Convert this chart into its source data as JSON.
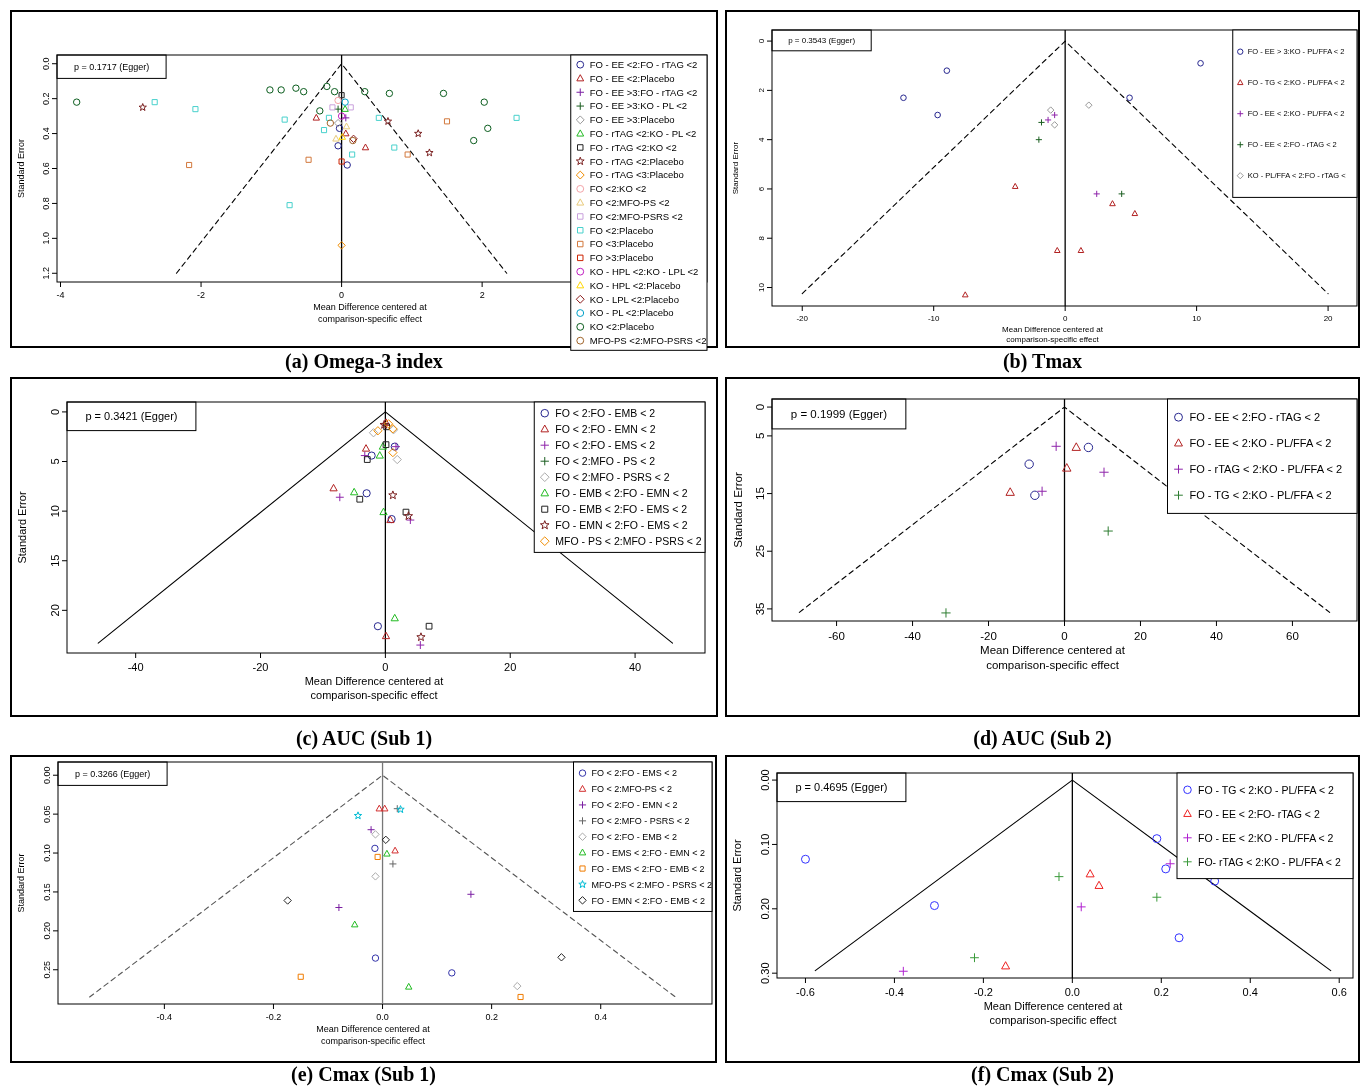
{
  "chart_data": [
    {
      "type": "scatter",
      "title": "(a) Omega-3 index",
      "xlabel": "Mean Difference centered at comparison-specific effect",
      "ylabel": "Standard Error",
      "annotations": [
        "p = 0.1717 (Egger)"
      ],
      "xlim": [
        -4.05,
        5.2
      ],
      "ylim": [
        1.25,
        -0.05
      ],
      "xticks": [
        -4,
        -2,
        0,
        2
      ],
      "yticks": [
        {
          "value": 0,
          "label": "0.0"
        },
        {
          "value": 0.2,
          "label": "0.2"
        },
        {
          "value": 0.4,
          "label": "0.4"
        },
        {
          "value": 0.6,
          "label": "0.6"
        },
        {
          "value": 0.8,
          "label": "0.8"
        },
        {
          "value": 1,
          "label": "1.0"
        },
        {
          "value": 1.2,
          "label": "1.2"
        }
      ],
      "legend": "right",
      "ref_lines": [
        {
          "axis": "x",
          "value": 0,
          "color": "#000000"
        }
      ],
      "series": [
        {
          "type": "line",
          "color": "#000000",
          "line_style": "dashed",
          "x": [
            -2.35,
            0,
            2.35
          ],
          "values": [
            1.2,
            0,
            1.2
          ]
        },
        {
          "name": "FO - EE <2:FO - rTAG <2",
          "color": "#27278f",
          "marker": "circle",
          "x": [
            -0.03,
            -0.05,
            0.08
          ],
          "values": [
            0.37,
            0.47,
            0.58
          ]
        },
        {
          "name": "FO - EE <2:Placebo",
          "color": "#b22222",
          "marker": "triangle",
          "x": [
            -0.36,
            0.06,
            0.34
          ],
          "values": [
            0.31,
            0.4,
            0.48
          ]
        },
        {
          "name": "FO - EE >3:FO - rTAG <2",
          "color": "#7b1fa2",
          "marker": "cross",
          "x": [
            0.06
          ],
          "values": [
            0.31
          ]
        },
        {
          "name": "FO - EE >3:KO - PL <2",
          "color": "#1b5e20",
          "marker": "cross",
          "x": [
            -0.05
          ],
          "values": [
            0.26
          ]
        },
        {
          "name": "FO - EE >3:Placebo",
          "color": "#999999",
          "marker": "diamond",
          "x": [
            -0.05
          ],
          "values": [
            0.34
          ]
        },
        {
          "name": "FO - rTAG <2:KO - PL <2",
          "color": "#22bb22",
          "marker": "triangle",
          "x": [
            0.05
          ],
          "values": [
            0.26
          ]
        },
        {
          "name": "FO - rTAG <2:KO <2",
          "color": "#222222",
          "marker": "square",
          "x": [
            0
          ],
          "values": [
            0.18
          ]
        },
        {
          "name": "FO - rTAG <2:Placebo",
          "color": "#7a1f1f",
          "marker": "star",
          "x": [
            -2.83,
            0.66,
            1.09,
            1.25
          ],
          "values": [
            0.25,
            0.33,
            0.4,
            0.51
          ]
        },
        {
          "name": "FO - rTAG <3:Placebo",
          "color": "#f08c00",
          "marker": "diamond",
          "x": [
            0
          ],
          "values": [
            1.04
          ]
        },
        {
          "name": "FO <2:KO <2",
          "color": "#f4a3a8",
          "marker": "circle",
          "x": [
            -0.05
          ],
          "values": [
            0.21
          ]
        },
        {
          "name": "FO <2:MFO-PS <2",
          "color": "#e8c97a",
          "marker": "triangle",
          "x": [
            -0.08,
            0.07
          ],
          "values": [
            0.43,
            0.36
          ]
        },
        {
          "name": "FO <2:MFO-PSRS <2",
          "color": "#c9a0dc",
          "marker": "square",
          "x": [
            -0.13,
            0.13
          ],
          "values": [
            0.25,
            0.25
          ]
        },
        {
          "name": "FO <2:Placebo",
          "color": "#48d1cc",
          "marker": "square",
          "x": [
            -2.66,
            -2.08,
            -0.81,
            -0.25,
            -0.18,
            0.15,
            0.53,
            0.75,
            2.49,
            -0.74
          ],
          "values": [
            0.22,
            0.26,
            0.32,
            0.38,
            0.31,
            0.52,
            0.31,
            0.48,
            0.31,
            0.81
          ]
        },
        {
          "name": "FO <3:Placebo",
          "color": "#d2783c",
          "marker": "square",
          "x": [
            -2.17,
            -0.47,
            0.94,
            1.5
          ],
          "values": [
            0.58,
            0.55,
            0.52,
            0.33
          ]
        },
        {
          "name": "FO >3:Placebo",
          "color": "#cc2200",
          "marker": "square",
          "x": [
            0
          ],
          "values": [
            0.56
          ]
        },
        {
          "name": "KO - HPL <2:KO - LPL <2",
          "color": "#c020c0",
          "marker": "circle",
          "x": [
            0
          ],
          "values": [
            0.3
          ]
        },
        {
          "name": "KO - HPL <2:Placebo",
          "color": "#ffd700",
          "marker": "triangle",
          "x": [
            0.01
          ],
          "values": [
            0.42
          ]
        },
        {
          "name": "KO - LPL <2:Placebo",
          "color": "#8b1a1a",
          "marker": "diamond",
          "x": [
            0.17
          ],
          "values": [
            0.43
          ]
        },
        {
          "name": "KO - PL <2:Placebo",
          "color": "#00a0c8",
          "marker": "circle",
          "x": [
            0.05
          ],
          "values": [
            0.22
          ]
        },
        {
          "name": "KO <2:Placebo",
          "color": "#0b5d1e",
          "marker": "circle",
          "x": [
            -3.77,
            -1.02,
            -0.86,
            -0.65,
            -0.54,
            -0.21,
            -0.1,
            -0.31,
            0.33,
            0.68,
            1.45,
            2.03,
            2.08,
            1.88
          ],
          "values": [
            0.22,
            0.15,
            0.15,
            0.14,
            0.16,
            0.13,
            0.16,
            0.27,
            0.16,
            0.17,
            0.17,
            0.22,
            0.37,
            0.44
          ]
        },
        {
          "name": "MFO-PS <2:MFO-PSRS <2",
          "color": "#a0642a",
          "marker": "circle",
          "x": [
            -0.16,
            0.16
          ],
          "values": [
            0.34,
            0.44
          ]
        }
      ]
    },
    {
      "type": "scatter",
      "title": "(b) Tmax",
      "xlabel": "Mean Difference centered at comparison-specific effect",
      "ylabel": "Standard Error",
      "annotations": [
        "p = 0.3543 (Egger)"
      ],
      "xlim": [
        -22.3,
        22.2
      ],
      "ylim": [
        10.75,
        -0.45
      ],
      "xticks": [
        -20,
        -10,
        0,
        10,
        20
      ],
      "yticks": [
        0,
        2,
        4,
        6,
        8,
        10
      ],
      "legend": "top right",
      "ref_lines": [
        {
          "axis": "x",
          "value": 0,
          "color": "#000000"
        }
      ],
      "series": [
        {
          "type": "line",
          "color": "#000000",
          "line_style": "dashed",
          "x": [
            -20,
            0,
            20
          ],
          "values": [
            10.25,
            0,
            10.25
          ]
        },
        {
          "name": "FO - EE > 3:KO - PL/FFA < 2",
          "color": "#27278f",
          "marker": "circle",
          "x": [
            -9,
            -12.3,
            -9.7,
            4.9,
            10.3
          ],
          "values": [
            1.2,
            2.3,
            3,
            2.3,
            0.9
          ]
        },
        {
          "name": "FO - TG < 2:KO - PL/FFA < 2",
          "color": "#b22222",
          "marker": "triangle",
          "x": [
            -3.8,
            3.6,
            5.3,
            -0.6,
            1.2,
            -7.6
          ],
          "values": [
            5.9,
            6.6,
            7,
            8.5,
            8.5,
            10.3
          ]
        },
        {
          "name": "FO - EE < 2:KO - PL/FFA < 2",
          "color": "#8e24aa",
          "marker": "cross",
          "x": [
            -0.8,
            -1.3,
            2.4
          ],
          "values": [
            3,
            3.2,
            6.2
          ]
        },
        {
          "name": "FO - EE < 2:FO - rTAG < 2",
          "color": "#1b5e20",
          "marker": "cross",
          "x": [
            -1.8,
            -2,
            4.3
          ],
          "values": [
            3.3,
            4,
            6.2
          ]
        },
        {
          "name": "KO - PL/FFA < 2:FO - rTAG <",
          "color": "#999999",
          "marker": "diamond",
          "x": [
            -1.1,
            -0.8,
            1.8
          ],
          "values": [
            2.8,
            3.4,
            2.6
          ]
        }
      ]
    },
    {
      "type": "scatter",
      "title": "(c) AUC (Sub 1)",
      "xlabel": "Mean Difference centered at comparison-specific effect",
      "ylabel": "Standard Error",
      "annotations": [
        "p = 0.3421 (Egger)"
      ],
      "xlim": [
        -51,
        51.2
      ],
      "ylim": [
        24.3,
        -1
      ],
      "xticks": [
        -40,
        -20,
        0,
        20,
        40
      ],
      "yticks": [
        0,
        5,
        10,
        15,
        20
      ],
      "legend": "top right",
      "ref_lines": [
        {
          "axis": "x",
          "value": 0,
          "color": "#000000"
        }
      ],
      "series": [
        {
          "type": "line",
          "color": "#000000",
          "line_style": "solid",
          "x": [
            -46,
            0,
            46
          ],
          "values": [
            23.3,
            0,
            23.3
          ]
        },
        {
          "name": "FO < 2:FO - EMB < 2",
          "color": "#27278f",
          "marker": "circle",
          "x": [
            -2.2,
            -3,
            1,
            -1.2,
            1.5
          ],
          "values": [
            4.4,
            8.2,
            10.8,
            21.6,
            3.5
          ]
        },
        {
          "name": "FO < 2:FO - EMN < 2",
          "color": "#b22222",
          "marker": "triangle",
          "x": [
            -3.1,
            -8.3,
            0.8,
            0.1,
            0.1
          ],
          "values": [
            3.7,
            7.7,
            10.9,
            22.6,
            1.1
          ]
        },
        {
          "name": "FO < 2:FO - EMS < 2",
          "color": "#8e24aa",
          "marker": "cross",
          "x": [
            -3.3,
            -7.3,
            4,
            5.6,
            1.7
          ],
          "values": [
            4.4,
            8.6,
            10.9,
            23.5,
            3.5
          ]
        },
        {
          "name": "FO < 2:MFO - PS < 2",
          "color": "#1b5e20",
          "marker": "cross"
        },
        {
          "name": "FO < 2:MFO - PSRS < 2",
          "color": "#aaaaaa",
          "marker": "diamond",
          "x": [
            -1.9,
            1.9,
            1.3
          ],
          "values": [
            2.1,
            4.8,
            1.8
          ]
        },
        {
          "name": "FO - EMB < 2:FO - EMN < 2",
          "color": "#22bb22",
          "marker": "triangle",
          "x": [
            -5,
            -0.3,
            1.5,
            -0.9,
            -0.4
          ],
          "values": [
            8.1,
            10.1,
            20.8,
            4.4,
            3.5
          ]
        },
        {
          "name": "FO - EMB < 2:FO - EMS < 2",
          "color": "#222222",
          "marker": "square",
          "x": [
            -4.1,
            -2.9,
            3.3,
            7,
            0.1,
            0.2
          ],
          "values": [
            8.8,
            4.8,
            10.1,
            21.6,
            3.3,
            1.5
          ]
        },
        {
          "name": "FO - EMN < 2:FO - EMS < 2",
          "color": "#7a1f1f",
          "marker": "star",
          "x": [
            1.2,
            5.7,
            3.7,
            -0.2
          ],
          "values": [
            8.4,
            22.7,
            10.5,
            1.3
          ]
        },
        {
          "name": "MFO - PS < 2:MFO - PSRS < 2",
          "color": "#f08c00",
          "marker": "diamond",
          "x": [
            -1.2,
            1.2,
            0.5,
            1.2
          ],
          "values": [
            1.9,
            4.1,
            1.2,
            1.7
          ]
        }
      ]
    },
    {
      "type": "scatter",
      "title": "(d) AUC (Sub 2)",
      "xlabel": "Mean Difference centered at comparison-specific effect",
      "ylabel": "Standard Error",
      "annotations": [
        "p = 0.1999 (Egger)"
      ],
      "xlim": [
        -77,
        77
      ],
      "ylim": [
        37.1,
        -1.4
      ],
      "xticks": [
        -60,
        -40,
        -20,
        0,
        20,
        40,
        60
      ],
      "yticks": [
        0,
        5,
        15,
        25,
        35
      ],
      "legend": "top right",
      "ref_lines": [
        {
          "axis": "x",
          "value": 0,
          "color": "#000000"
        }
      ],
      "series": [
        {
          "type": "line",
          "color": "#000000",
          "line_style": "dashed",
          "x": [
            -69.8,
            0,
            69.8
          ],
          "values": [
            35.6,
            0,
            35.6
          ]
        },
        {
          "name": "FO - EE < 2:FO - rTAG < 2",
          "color": "#27278f",
          "marker": "circle",
          "x": [
            -9.3,
            -7.8,
            6.3
          ],
          "values": [
            9.9,
            15.3,
            7
          ]
        },
        {
          "name": "FO - EE < 2:KO - PL/FFA < 2",
          "color": "#b22222",
          "marker": "triangle",
          "x": [
            -14.3,
            0.6,
            3.1
          ],
          "values": [
            14.8,
            10.6,
            7
          ]
        },
        {
          "name": "FO - rTAG < 2:KO - PL/FFA < 2",
          "color": "#8e24aa",
          "marker": "cross",
          "x": [
            -2.2,
            -5.9,
            10.4
          ],
          "values": [
            6.8,
            14.6,
            11.3
          ]
        },
        {
          "name": "FO - TG < 2:KO - PL/FFA < 2",
          "color": "#2e7d32",
          "marker": "cross",
          "x": [
            11.5,
            -31.2
          ],
          "values": [
            21.5,
            35.7
          ]
        }
      ]
    },
    {
      "type": "scatter",
      "title": "(e) Cmax (Sub 1)",
      "xlabel": "Mean Difference centered at comparison-specific effect",
      "ylabel": "Standard Error",
      "annotations": [
        "p = 0.3266 (Egger)"
      ],
      "xlim": [
        -0.595,
        0.604
      ],
      "ylim": [
        0.294,
        -0.017
      ],
      "xticks": [
        -0.4,
        -0.2,
        {
          "value": 0,
          "label": "0.0"
        },
        0.2,
        0.4
      ],
      "yticks": [
        {
          "value": 0,
          "label": "0.00"
        },
        {
          "value": 0.05,
          "label": "0.05"
        },
        {
          "value": 0.1,
          "label": "0.10"
        },
        {
          "value": 0.15,
          "label": "0.15"
        },
        {
          "value": 0.2,
          "label": "0.20"
        },
        {
          "value": 0.25,
          "label": "0.25"
        }
      ],
      "legend": "top right",
      "ref_lines": [
        {
          "axis": "x",
          "value": 0,
          "color": "#777777"
        }
      ],
      "series": [
        {
          "type": "line",
          "color": "#555555",
          "line_style": "dashed",
          "x": [
            -0.537,
            0,
            0.537
          ],
          "values": [
            0.285,
            0,
            0.285
          ]
        },
        {
          "name": "FO < 2:FO - EMS < 2",
          "color": "#3333aa",
          "marker": "circle",
          "x": [
            -0.014,
            -0.013,
            0.127
          ],
          "values": [
            0.094,
            0.235,
            0.254
          ]
        },
        {
          "name": "FO < 2:MFO-PS < 2",
          "color": "#d32f2f",
          "marker": "triangle",
          "x": [
            -0.006,
            0.004,
            0.023
          ],
          "values": [
            0.043,
            0.043,
            0.097
          ]
        },
        {
          "name": "FO < 2:FO - EMN < 2",
          "color": "#7b1fa2",
          "marker": "cross",
          "x": [
            -0.021,
            0.162,
            -0.08
          ],
          "values": [
            0.07,
            0.153,
            0.17
          ]
        },
        {
          "name": "FO < 2:MFO - PSRS < 2",
          "color": "#666666",
          "marker": "cross",
          "x": [
            0.027,
            0.019
          ],
          "values": [
            0.043,
            0.114
          ]
        },
        {
          "name": "FO < 2:FO - EMB < 2",
          "color": "#aaaaaa",
          "marker": "diamond",
          "x": [
            -0.013,
            -0.013,
            0.247
          ],
          "values": [
            0.076,
            0.13,
            0.271
          ]
        },
        {
          "name": "FO - EMS < 2:FO - EMN < 2",
          "color": "#22bb22",
          "marker": "triangle",
          "x": [
            0.008,
            -0.051,
            0.048
          ],
          "values": [
            0.101,
            0.192,
            0.272
          ]
        },
        {
          "name": "FO - EMS < 2:FO - EMB < 2",
          "color": "#f07c00",
          "marker": "square",
          "x": [
            -0.009,
            -0.15,
            0.253
          ],
          "values": [
            0.105,
            0.259,
            0.285
          ]
        },
        {
          "name": "MFO-PS < 2:MFO - PSRS < 2",
          "color": "#00bcd4",
          "marker": "star",
          "x": [
            -0.045,
            0.033
          ],
          "values": [
            0.052,
            0.044
          ]
        },
        {
          "name": "FO - EMN < 2:FO - EMB < 2",
          "color": "#222222",
          "marker": "diamond",
          "x": [
            0.006,
            -0.174,
            0.328
          ],
          "values": [
            0.083,
            0.161,
            0.234
          ]
        }
      ]
    },
    {
      "type": "scatter",
      "title": "(f) Cmax (Sub 2)",
      "xlabel": "Mean Difference centered at comparison-specific effect",
      "ylabel": "Standard Error",
      "annotations": [
        "p = 0.4695 (Egger)"
      ],
      "xlim": [
        -0.664,
        0.631
      ],
      "ylim": [
        0.3075,
        -0.011
      ],
      "xticks": [
        -0.6,
        -0.4,
        -0.2,
        {
          "value": 0,
          "label": "0.0"
        },
        0.2,
        0.4,
        0.6
      ],
      "yticks": [
        {
          "value": 0,
          "label": "0.00"
        },
        {
          "value": 0.1,
          "label": "0.10"
        },
        {
          "value": 0.2,
          "label": "0.20"
        },
        {
          "value": 0.3,
          "label": "0.30"
        }
      ],
      "legend": "top right",
      "ref_lines": [
        {
          "axis": "x",
          "value": 0,
          "color": "#000000"
        }
      ],
      "series": [
        {
          "type": "line",
          "color": "#000000",
          "line_style": "solid",
          "x": [
            -0.578,
            0,
            0.581
          ],
          "values": [
            0.296,
            0,
            0.296
          ]
        },
        {
          "name": "FO - TG < 2:KO - PL/FFA < 2",
          "color": "#3333ff",
          "marker": "circle",
          "x": [
            -0.6,
            -0.31,
            0.19,
            0.21,
            0.32,
            0.24
          ],
          "values": [
            0.123,
            0.195,
            0.091,
            0.138,
            0.157,
            0.245
          ]
        },
        {
          "name": "FO - EE < 2:FO- rTAG < 2",
          "color": "#ee2222",
          "marker": "triangle",
          "x": [
            0.04,
            0.06,
            -0.15
          ],
          "values": [
            0.146,
            0.164,
            0.289
          ]
        },
        {
          "name": "FO - EE < 2:KO - PL/FFA < 2",
          "color": "#b020d0",
          "marker": "cross",
          "x": [
            0.22,
            0.02,
            -0.38
          ],
          "values": [
            0.13,
            0.197,
            0.297
          ]
        },
        {
          "name": "FO- rTAG < 2:KO - PL/FFA < 2",
          "color": "#3a9a3a",
          "marker": "cross",
          "x": [
            -0.03,
            0.19,
            -0.22
          ],
          "values": [
            0.15,
            0.182,
            0.276
          ]
        }
      ]
    }
  ]
}
